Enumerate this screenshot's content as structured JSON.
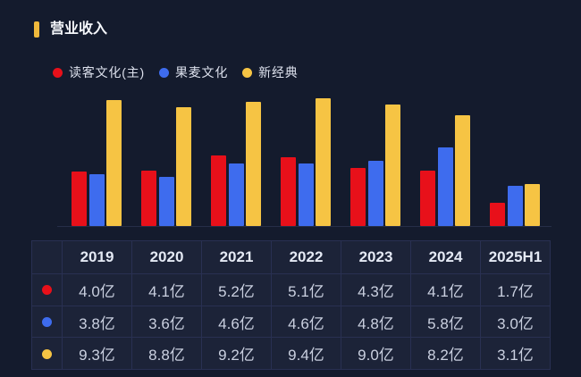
{
  "header": {
    "title": "营业收入",
    "accent_color": "#f0b93c"
  },
  "colors": {
    "background": "#141b2d",
    "table_background": "#1c2338",
    "grid_line": "#293052",
    "axis_line": "#262e48",
    "series_red": "#e8101a",
    "series_blue": "#3e6cee",
    "series_yellow": "#f6c444"
  },
  "chart_data": {
    "type": "bar",
    "title": "营业收入",
    "categories": [
      "2019",
      "2020",
      "2021",
      "2022",
      "2023",
      "2024",
      "2025H1"
    ],
    "series": [
      {
        "name": "读客文化(主)",
        "color": "#e8101a",
        "values": [
          4.0,
          4.1,
          5.2,
          5.1,
          4.3,
          4.1,
          1.7
        ]
      },
      {
        "name": "果麦文化",
        "color": "#3e6cee",
        "values": [
          3.8,
          3.6,
          4.6,
          4.6,
          4.8,
          5.8,
          3.0
        ]
      },
      {
        "name": "新经典",
        "color": "#f6c444",
        "values": [
          9.3,
          8.8,
          9.2,
          9.4,
          9.0,
          8.2,
          3.1
        ]
      }
    ],
    "unit": "亿",
    "ylim": [
      0,
      10
    ],
    "grid": false,
    "legend_position": "top",
    "value_labels": false
  },
  "table": {
    "columns": [
      "",
      "2019",
      "2020",
      "2021",
      "2022",
      "2023",
      "2024",
      "2025H1"
    ],
    "rows": [
      {
        "series": "读客文化(主)",
        "dot_color": "#e8101a",
        "cells": [
          "4.0亿",
          "4.1亿",
          "5.2亿",
          "5.1亿",
          "4.3亿",
          "4.1亿",
          "1.7亿"
        ]
      },
      {
        "series": "果麦文化",
        "dot_color": "#3e6cee",
        "cells": [
          "3.8亿",
          "3.6亿",
          "4.6亿",
          "4.6亿",
          "4.8亿",
          "5.8亿",
          "3.0亿"
        ]
      },
      {
        "series": "新经典",
        "dot_color": "#f6c444",
        "cells": [
          "9.3亿",
          "8.8亿",
          "9.2亿",
          "9.4亿",
          "9.0亿",
          "8.2亿",
          "3.1亿"
        ]
      }
    ]
  }
}
